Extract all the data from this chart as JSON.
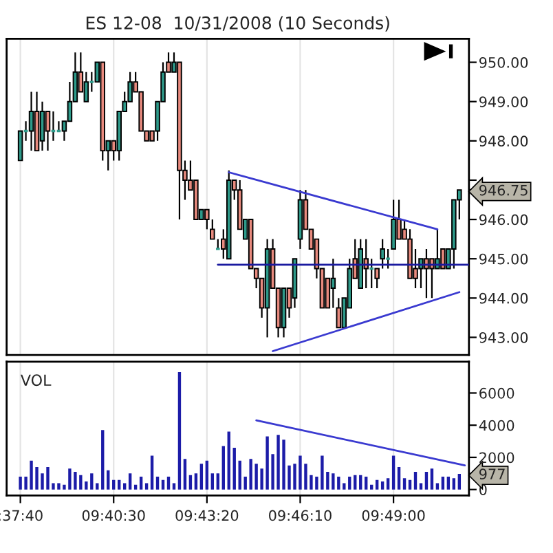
{
  "chart_data": [
    {
      "type": "candlestick",
      "title": "ES 12-08  10/31/2008 (10 Seconds)",
      "x": [
        9.62778,
        9.63056,
        9.63333,
        9.63611,
        9.63889,
        9.64167,
        9.64444,
        9.64722,
        9.65,
        9.65278,
        9.65556,
        9.65833,
        9.66111,
        9.66389,
        9.66667,
        9.66944,
        9.67222,
        9.675,
        9.67778,
        9.68056,
        9.68333,
        9.68611,
        9.68889,
        9.69167,
        9.69444,
        9.69722,
        9.7,
        9.70278,
        9.70556,
        9.70833,
        9.71111,
        9.71389,
        9.71667,
        9.71944,
        9.72222,
        9.725,
        9.72778,
        9.73056,
        9.73333,
        9.73611,
        9.73889,
        9.74167,
        9.74444,
        9.74722,
        9.75,
        9.75278,
        9.75556,
        9.75833,
        9.76111,
        9.76389,
        9.76667,
        9.76944,
        9.77222,
        9.775,
        9.77778,
        9.78056,
        9.78333,
        9.78611,
        9.78889,
        9.79167,
        9.79444,
        9.79722,
        9.8,
        9.80278,
        9.80556,
        9.80833,
        9.81111,
        9.81389,
        9.81667,
        9.81944,
        9.82222,
        9.825,
        9.82778,
        9.83056,
        9.83333,
        9.83611,
        9.83889,
        9.84167,
        9.84444,
        9.84722,
        9.85
      ],
      "ohlc": [
        [
          947.5,
          948.25,
          947.5,
          948.25
        ],
        [
          948.25,
          948.5,
          948,
          948.25
        ],
        [
          948.25,
          949.25,
          947.75,
          948.75
        ],
        [
          948.75,
          949.25,
          947.75,
          947.75
        ],
        [
          948,
          949,
          947.75,
          948.75
        ],
        [
          948.75,
          948.75,
          947.75,
          948.25
        ],
        [
          948.25,
          948.75,
          948,
          948.25
        ],
        [
          948.25,
          948.5,
          948.25,
          948.25
        ],
        [
          948.25,
          948.5,
          948,
          948.5
        ],
        [
          948.5,
          949.5,
          948.5,
          949
        ],
        [
          949,
          950.25,
          949,
          949.75
        ],
        [
          949.75,
          950.25,
          949.25,
          949.25
        ],
        [
          949,
          949.75,
          949,
          949.5
        ],
        [
          949.5,
          949.75,
          949.25,
          949.5
        ],
        [
          949.5,
          950,
          949.5,
          950
        ],
        [
          950,
          950,
          947.5,
          947.75
        ],
        [
          947.75,
          948,
          947.25,
          948
        ],
        [
          948,
          948,
          947.5,
          947.75
        ],
        [
          947.75,
          948.75,
          947.5,
          948.75
        ],
        [
          948.75,
          949.25,
          948.75,
          949
        ],
        [
          949,
          949.75,
          949,
          949.5
        ],
        [
          949.5,
          949.75,
          949.25,
          949.25
        ],
        [
          949.25,
          949.25,
          948.25,
          948.25
        ],
        [
          948.25,
          948.25,
          948,
          948
        ],
        [
          948.25,
          948.25,
          948,
          948
        ],
        [
          948.25,
          949,
          948,
          949
        ],
        [
          949,
          950,
          949,
          949.75
        ],
        [
          950,
          950.25,
          949.75,
          949.75
        ],
        [
          949.75,
          950.25,
          949.75,
          950
        ],
        [
          950,
          950,
          946,
          947.25
        ],
        [
          947.25,
          947.5,
          946.5,
          947
        ],
        [
          947,
          947.5,
          946.75,
          946.75
        ],
        [
          947,
          947,
          946,
          946
        ],
        [
          946,
          946.25,
          946,
          946.25
        ],
        [
          946.25,
          946.25,
          945.75,
          946
        ],
        [
          945.75,
          946,
          945.5,
          945.5
        ],
        [
          945.25,
          945.5,
          945.25,
          945.25
        ],
        [
          945.5,
          945.75,
          945,
          945.25
        ],
        [
          945,
          947.25,
          945,
          947
        ],
        [
          947,
          947,
          946.5,
          946.75
        ],
        [
          946.75,
          947,
          945.75,
          945.75
        ],
        [
          945.5,
          946,
          945.5,
          946
        ],
        [
          946,
          946,
          944.75,
          944.75
        ],
        [
          944.75,
          944.75,
          944.25,
          944.5
        ],
        [
          944.5,
          944.5,
          943.5,
          943.75
        ],
        [
          943.75,
          945.5,
          943,
          945.25
        ],
        [
          945.25,
          945.5,
          944.25,
          944.25
        ],
        [
          944.25,
          944.25,
          943,
          943.25
        ],
        [
          943.25,
          944.25,
          943,
          944.25
        ],
        [
          944.25,
          944.25,
          943.5,
          943.75
        ],
        [
          944,
          945,
          943.75,
          945
        ],
        [
          945.5,
          946.75,
          945.25,
          946.5
        ],
        [
          946.5,
          946.75,
          945.75,
          945.75
        ],
        [
          945.75,
          945.75,
          945.25,
          945.25
        ],
        [
          945.5,
          945.5,
          944.5,
          944.75
        ],
        [
          944.75,
          944.75,
          943.75,
          943.75
        ],
        [
          944.5,
          944.5,
          943.75,
          943.75
        ],
        [
          944.25,
          945,
          943.75,
          944.5
        ],
        [
          943.75,
          944,
          943.25,
          943.25
        ],
        [
          943.25,
          944,
          943.25,
          944
        ],
        [
          943.75,
          945,
          943.75,
          944.75
        ],
        [
          945,
          945.5,
          944.5,
          944.5
        ],
        [
          944.25,
          945.5,
          944.25,
          945.25
        ],
        [
          945,
          945.5,
          944.25,
          944.75
        ],
        [
          944.75,
          945,
          944.25,
          944.75
        ],
        [
          944.75,
          944.75,
          944.25,
          944.5
        ],
        [
          945,
          945.5,
          944.75,
          945.25
        ],
        [
          945,
          945.25,
          944.75,
          945
        ],
        [
          945.25,
          946.5,
          945.25,
          946
        ],
        [
          946,
          946.5,
          945.5,
          945.5
        ],
        [
          945.75,
          946,
          945.5,
          945.5
        ],
        [
          945.5,
          945.75,
          944.5,
          944.5
        ],
        [
          944.75,
          945.25,
          944.25,
          944.5
        ],
        [
          944.75,
          945,
          944.25,
          945
        ],
        [
          945,
          945.25,
          944,
          944.75
        ],
        [
          945,
          945,
          944,
          944.75
        ],
        [
          944.75,
          945.75,
          944.75,
          945
        ],
        [
          945.25,
          945.25,
          944.75,
          944.75
        ],
        [
          944.75,
          945.25,
          944.75,
          945.25
        ],
        [
          945.25,
          946.5,
          944.75,
          946.5
        ],
        [
          946.5,
          946.75,
          946,
          946.75
        ]
      ],
      "colors": [
        "#2e9a8a",
        "#2e9a8a",
        "#2e9a8a",
        "#e88a7e",
        "#2e9a8a",
        "#e88a7e",
        "#2e9a8a",
        "#2e9a8a",
        "#2e9a8a",
        "#2e9a8a",
        "#2e9a8a",
        "#e88a7e",
        "#2e9a8a",
        "#2e9a8a",
        "#2e9a8a",
        "#e88a7e",
        "#2e9a8a",
        "#e88a7e",
        "#2e9a8a",
        "#2e9a8a",
        "#2e9a8a",
        "#e88a7e",
        "#e88a7e",
        "#e88a7e",
        "#e88a7e",
        "#2e9a8a",
        "#2e9a8a",
        "#e88a7e",
        "#2e9a8a",
        "#e88a7e",
        "#e88a7e",
        "#e88a7e",
        "#e88a7e",
        "#2e9a8a",
        "#e88a7e",
        "#e88a7e",
        "#2e9a8a",
        "#e88a7e",
        "#2e9a8a",
        "#e88a7e",
        "#e88a7e",
        "#2e9a8a",
        "#e88a7e",
        "#e88a7e",
        "#e88a7e",
        "#2e9a8a",
        "#e88a7e",
        "#e88a7e",
        "#2e9a8a",
        "#e88a7e",
        "#2e9a8a",
        "#2e9a8a",
        "#e88a7e",
        "#e88a7e",
        "#e88a7e",
        "#e88a7e",
        "#e88a7e",
        "#2e9a8a",
        "#e88a7e",
        "#2e9a8a",
        "#2e9a8a",
        "#e88a7e",
        "#2e9a8a",
        "#e88a7e",
        "#2e9a8a",
        "#e88a7e",
        "#2e9a8a",
        "#2e9a8a",
        "#2e9a8a",
        "#e88a7e",
        "#e88a7e",
        "#e88a7e",
        "#e88a7e",
        "#2e9a8a",
        "#e88a7e",
        "#e88a7e",
        "#2e9a8a",
        "#e88a7e",
        "#2e9a8a",
        "#2e9a8a",
        "#2e9a8a"
      ],
      "series": [
        {
          "type": "line",
          "color": "#3a3ad0",
          "x": [
            9.73333,
            9.83889
          ],
          "values": [
            947.2,
            945.75
          ]
        },
        {
          "type": "line",
          "color": "#3a3ad0",
          "x": [
            9.75556,
            9.85
          ],
          "values": [
            942.65,
            944.15
          ]
        },
        {
          "type": "line",
          "color": "#1a1aa0",
          "x": [
            9.72778,
            9.85486
          ],
          "values": [
            944.85,
            944.85
          ]
        }
      ],
      "xlim": [
        9.62083,
        9.85486
      ],
      "xticks": [
        {
          "value": 9.62778,
          "label": null
        },
        {
          "value": 9.675,
          "label": null
        },
        {
          "value": 9.72222,
          "label": null
        },
        {
          "value": 9.76944,
          "label": null
        },
        {
          "value": 9.81667,
          "label": null
        }
      ],
      "ylim": [
        942.55,
        950.6
      ],
      "yticks": [
        {
          "value": 943,
          "label": "943.00"
        },
        {
          "value": 944,
          "label": "944.00"
        },
        {
          "value": 945,
          "label": "945.00"
        },
        {
          "value": 946,
          "label": "946.00"
        },
        {
          "value": 946.75,
          "label": "946.75"
        },
        {
          "value": 947,
          "label": null
        },
        {
          "value": 948,
          "label": "948.00"
        },
        {
          "value": 949,
          "label": "949.00"
        },
        {
          "value": 950,
          "label": "950.00"
        }
      ],
      "tick_labels": "y",
      "grid": "x"
    },
    {
      "type": "bar",
      "color": "#1c1ca8",
      "x": [
        9.62778,
        9.63056,
        9.63333,
        9.63611,
        9.63889,
        9.64167,
        9.64444,
        9.64722,
        9.65,
        9.65278,
        9.65556,
        9.65833,
        9.66111,
        9.66389,
        9.66667,
        9.66944,
        9.67222,
        9.675,
        9.67778,
        9.68056,
        9.68333,
        9.68611,
        9.68889,
        9.69167,
        9.69444,
        9.69722,
        9.7,
        9.70278,
        9.70556,
        9.70833,
        9.71111,
        9.71389,
        9.71667,
        9.71944,
        9.72222,
        9.725,
        9.72778,
        9.73056,
        9.73333,
        9.73611,
        9.73889,
        9.74167,
        9.74444,
        9.74722,
        9.75,
        9.75278,
        9.75556,
        9.75833,
        9.76111,
        9.76389,
        9.76667,
        9.76944,
        9.77222,
        9.775,
        9.77778,
        9.78056,
        9.78333,
        9.78611,
        9.78889,
        9.79167,
        9.79444,
        9.79722,
        9.8,
        9.80278,
        9.80556,
        9.80833,
        9.81111,
        9.81389,
        9.81667,
        9.81944,
        9.82222,
        9.825,
        9.82778,
        9.83056,
        9.83333,
        9.83611,
        9.83889,
        9.84167,
        9.84444,
        9.84722,
        9.85
      ],
      "values": [
        800,
        800,
        1800,
        1400,
        1000,
        1400,
        400,
        400,
        300,
        1300,
        1100,
        900,
        500,
        1000,
        400,
        3700,
        1200,
        600,
        600,
        400,
        1000,
        300,
        800,
        400,
        2100,
        800,
        600,
        800,
        400,
        7300,
        1900,
        900,
        1000,
        1600,
        1800,
        1000,
        1000,
        2700,
        3600,
        2600,
        1800,
        800,
        1900,
        1600,
        1300,
        3300,
        2200,
        3400,
        3100,
        1500,
        1600,
        2100,
        1600,
        900,
        800,
        2100,
        1100,
        1000,
        800,
        400,
        800,
        900,
        900,
        800,
        300,
        600,
        500,
        700,
        2100,
        1400,
        700,
        600,
        1100,
        400,
        1100,
        1300,
        400,
        800,
        800,
        700,
        977
      ],
      "series": [
        {
          "type": "line",
          "color": "#3a3ad0",
          "x": [
            9.74722,
            9.85278
          ],
          "values": [
            4300,
            1500
          ]
        }
      ],
      "annotations": [
        "VOL"
      ],
      "xlim": [
        9.62083,
        9.85486
      ],
      "xticks": [
        {
          "value": 9.62778,
          "label": ":37:40"
        },
        {
          "value": 9.675,
          "label": "09:40:30"
        },
        {
          "value": 9.72222,
          "label": "09:43:20"
        },
        {
          "value": 9.76944,
          "label": "09:46:10"
        },
        {
          "value": 9.81667,
          "label": "09:49:00"
        }
      ],
      "ylim": [
        -370,
        7950
      ],
      "yticks": [
        0,
        {
          "value": 977,
          "label": "977"
        },
        2000,
        4000,
        6000
      ],
      "grid": "x"
    }
  ]
}
